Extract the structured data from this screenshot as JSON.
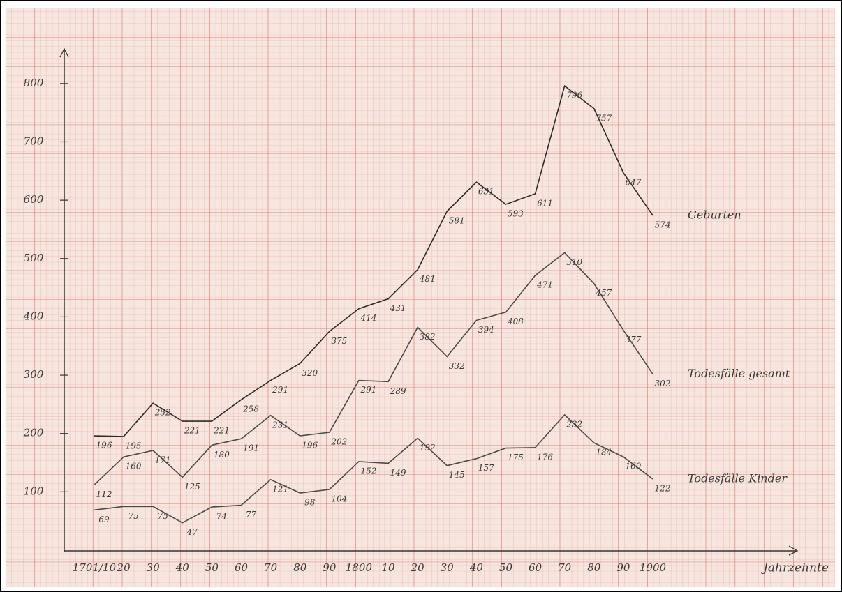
{
  "chart_data": {
    "type": "line",
    "categories": [
      "1701/10",
      "20",
      "30",
      "40",
      "50",
      "60",
      "70",
      "80",
      "90",
      "1800",
      "10",
      "20",
      "30",
      "40",
      "50",
      "60",
      "70",
      "80",
      "90",
      "1900"
    ],
    "series": [
      {
        "name": "Geburten",
        "color": "#2b2b2b",
        "values": [
          196,
          195,
          252,
          221,
          221,
          258,
          291,
          320,
          375,
          414,
          431,
          481,
          581,
          631,
          593,
          611,
          796,
          757,
          647,
          574
        ]
      },
      {
        "name": "Todesfälle gesamt",
        "color": "#4a4a4a",
        "values": [
          112,
          160,
          171,
          125,
          180,
          191,
          231,
          196,
          202,
          291,
          289,
          382,
          332,
          394,
          408,
          471,
          510,
          457,
          377,
          302
        ]
      },
      {
        "name": "Todesfälle Kinder",
        "color": "#4a4a4a",
        "values": [
          69,
          75,
          75,
          47,
          74,
          77,
          121,
          98,
          104,
          152,
          149,
          192,
          145,
          157,
          175,
          176,
          232,
          184,
          160,
          122
        ]
      }
    ],
    "x_label": "Jahrzehnte",
    "ylim": [
      0,
      850
    ],
    "yticks": [
      100,
      200,
      300,
      400,
      500,
      600,
      700,
      800
    ]
  }
}
